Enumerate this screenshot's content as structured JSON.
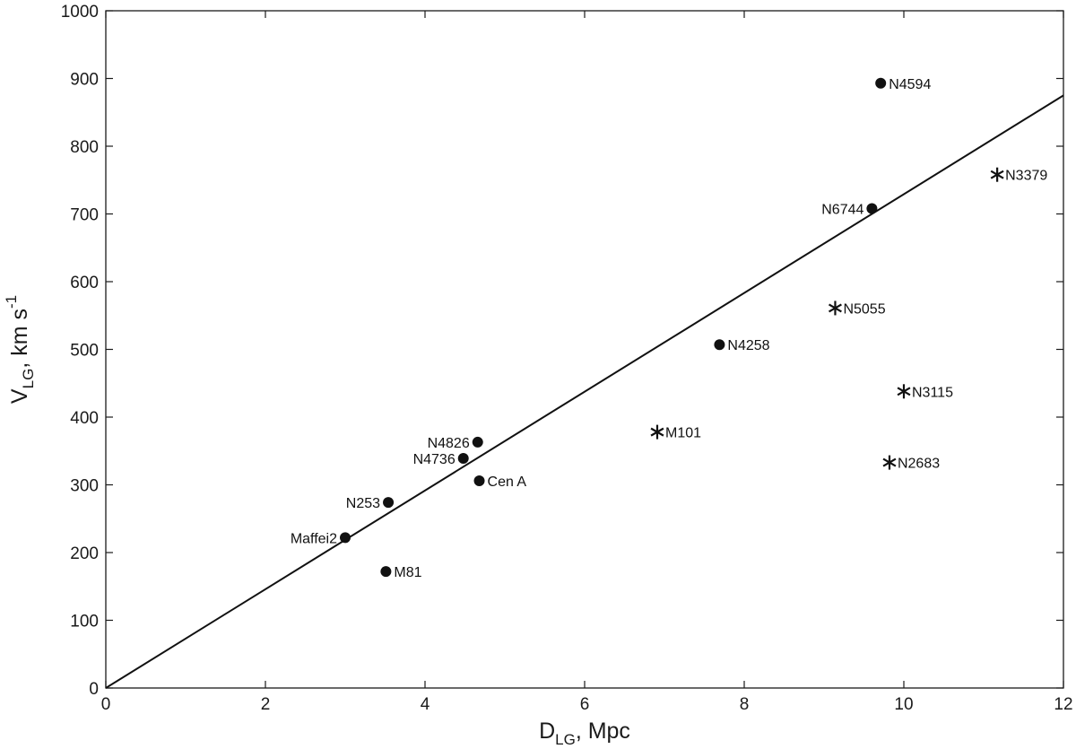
{
  "chart_data": {
    "type": "scatter",
    "xlabel": {
      "main": "D",
      "sub": "LG",
      "rest": ", Mpc"
    },
    "ylabel": {
      "main": "V",
      "sub": "LG",
      "rest": ", km s",
      "sup": "-1"
    },
    "xlim": [
      0,
      12
    ],
    "ylim": [
      0,
      1000
    ],
    "x_ticks": [
      0,
      2,
      4,
      6,
      8,
      10,
      12
    ],
    "y_ticks": [
      0,
      100,
      200,
      300,
      400,
      500,
      600,
      700,
      800,
      900,
      1000
    ],
    "grid": false,
    "line": {
      "x": [
        0,
        12
      ],
      "y": [
        0,
        875
      ]
    },
    "series": [
      {
        "marker": "circle",
        "points": [
          {
            "label": "N4594",
            "x": 9.71,
            "y": 893,
            "label_side": "right"
          },
          {
            "label": "N6744",
            "x": 9.6,
            "y": 708,
            "label_side": "left"
          },
          {
            "label": "N4258",
            "x": 7.69,
            "y": 507,
            "label_side": "right"
          },
          {
            "label": "N4826",
            "x": 4.66,
            "y": 363,
            "label_side": "left"
          },
          {
            "label": "N4736",
            "x": 4.48,
            "y": 339,
            "label_side": "left"
          },
          {
            "label": "Cen A",
            "x": 4.68,
            "y": 306,
            "label_side": "right"
          },
          {
            "label": "N253",
            "x": 3.54,
            "y": 274,
            "label_side": "left"
          },
          {
            "label": "Maffei2",
            "x": 3.0,
            "y": 222,
            "label_side": "left"
          },
          {
            "label": "M81",
            "x": 3.51,
            "y": 172,
            "label_side": "right"
          }
        ]
      },
      {
        "marker": "asterisk",
        "points": [
          {
            "label": "N3379",
            "x": 11.17,
            "y": 758,
            "label_side": "right"
          },
          {
            "label": "N5055",
            "x": 9.14,
            "y": 561,
            "label_side": "right"
          },
          {
            "label": "N3115",
            "x": 10.0,
            "y": 438,
            "label_side": "right"
          },
          {
            "label": "M101",
            "x": 6.91,
            "y": 378,
            "label_side": "right"
          },
          {
            "label": "N2683",
            "x": 9.82,
            "y": 333,
            "label_side": "right"
          }
        ]
      }
    ]
  },
  "colors": {
    "ink": "#111111",
    "axis": "#1a1a1a",
    "background": "#ffffff"
  }
}
